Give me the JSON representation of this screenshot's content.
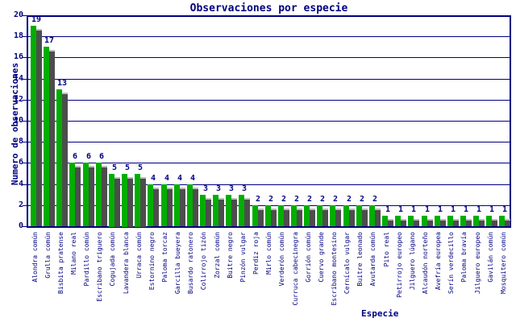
{
  "chart_data": {
    "type": "bar",
    "title": "Observaciones por especie",
    "xlabel": "Especie",
    "ylabel": "Numero de observaciones",
    "ylim": [
      0,
      20
    ],
    "ytick_step": 2,
    "grid": true,
    "legend_position": "none",
    "categories": [
      "Alondra común",
      "Grulla común",
      "Bisbita pratense",
      "Milano real",
      "Pardillo común",
      "Escribano triguero",
      "Cogujada común",
      "Lavandera blanca",
      "Urraca común",
      "Estornino negro",
      "Paloma torcaz",
      "Garcilla bueyera",
      "Busardo ratonero",
      "Colirrojo tizón",
      "Zorzal común",
      "Buitre negro",
      "Pinzón vulgar",
      "Perdiz roja",
      "Mirlo común",
      "Verderón común",
      "Curruca cabecinegra",
      "Gorrión común",
      "Cuervo grande",
      "Escribano montesino",
      "Cernícalo vulgar",
      "Buitre leonado",
      "Avutarda común",
      "Pito real",
      "Petirrojo europeo",
      "Jilguero lúgano",
      "Alcaudón norteño",
      "Avefría europea",
      "Serín verdecillo",
      "Paloma bravía",
      "Jilguero europeo",
      "Gavilán común",
      "Mosquitero común"
    ],
    "values": [
      19,
      17,
      13,
      6,
      6,
      6,
      5,
      5,
      5,
      4,
      4,
      4,
      4,
      3,
      3,
      3,
      3,
      2,
      2,
      2,
      2,
      2,
      2,
      2,
      2,
      2,
      2,
      1,
      1,
      1,
      1,
      1,
      1,
      1,
      1,
      1,
      1
    ],
    "colors": {
      "bar": "#00ae00",
      "bar_shadow": "#4d4d4d",
      "shadow_cap": "#bdbdbd",
      "axis": "#000080",
      "text": "#000080",
      "background": "#ffffff"
    }
  }
}
